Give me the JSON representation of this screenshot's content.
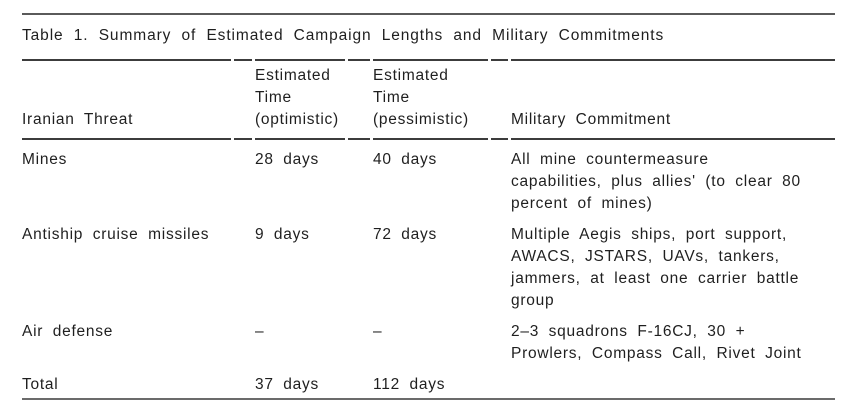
{
  "page": {
    "title": "Table 1. Summary of Estimated Campaign Lengths and Military Commitments"
  },
  "table": {
    "headers": {
      "threat": "Iranian Threat",
      "optimistic_lines": [
        "Estimated",
        "Time",
        "(optimistic)"
      ],
      "pessimistic_lines": [
        "Estimated",
        "Time",
        "(pessimistic)"
      ],
      "commitment": "Military Commitment"
    },
    "rows": [
      {
        "threat": "Mines",
        "optimistic": "28 days",
        "pessimistic": "40 days",
        "commitment_lines": {
          "0": "All mine countermeasure",
          "1": "capabilities, plus allies' (to clear 80",
          "2": "percent of mines)"
        }
      },
      {
        "threat": "Antiship cruise missiles",
        "optimistic": "9 days",
        "pessimistic": "72 days",
        "commitment_lines": {
          "0": "Multiple Aegis ships, port support,",
          "1": "AWACS, JSTARS, UAVs, tankers,",
          "2": "jammers, at least one carrier battle",
          "3": "group"
        }
      },
      {
        "threat": "Air defense",
        "optimistic": "–",
        "pessimistic": "–",
        "commitment_lines": {
          "0": "2–3 squadrons F-16CJ, 30 +",
          "1": "Prowlers, Compass Call, Rivet Joint"
        }
      },
      {
        "threat": "Total",
        "optimistic": "37 days",
        "pessimistic": "112 days",
        "commitment_lines": {}
      }
    ]
  },
  "colors": {
    "text": "#1f1f1f",
    "header_rule": "#3c3c3c",
    "outer_rule_top": "#5a5a5a",
    "outer_rule_bottom": "#6b6b6b",
    "background": "#ffffff"
  }
}
